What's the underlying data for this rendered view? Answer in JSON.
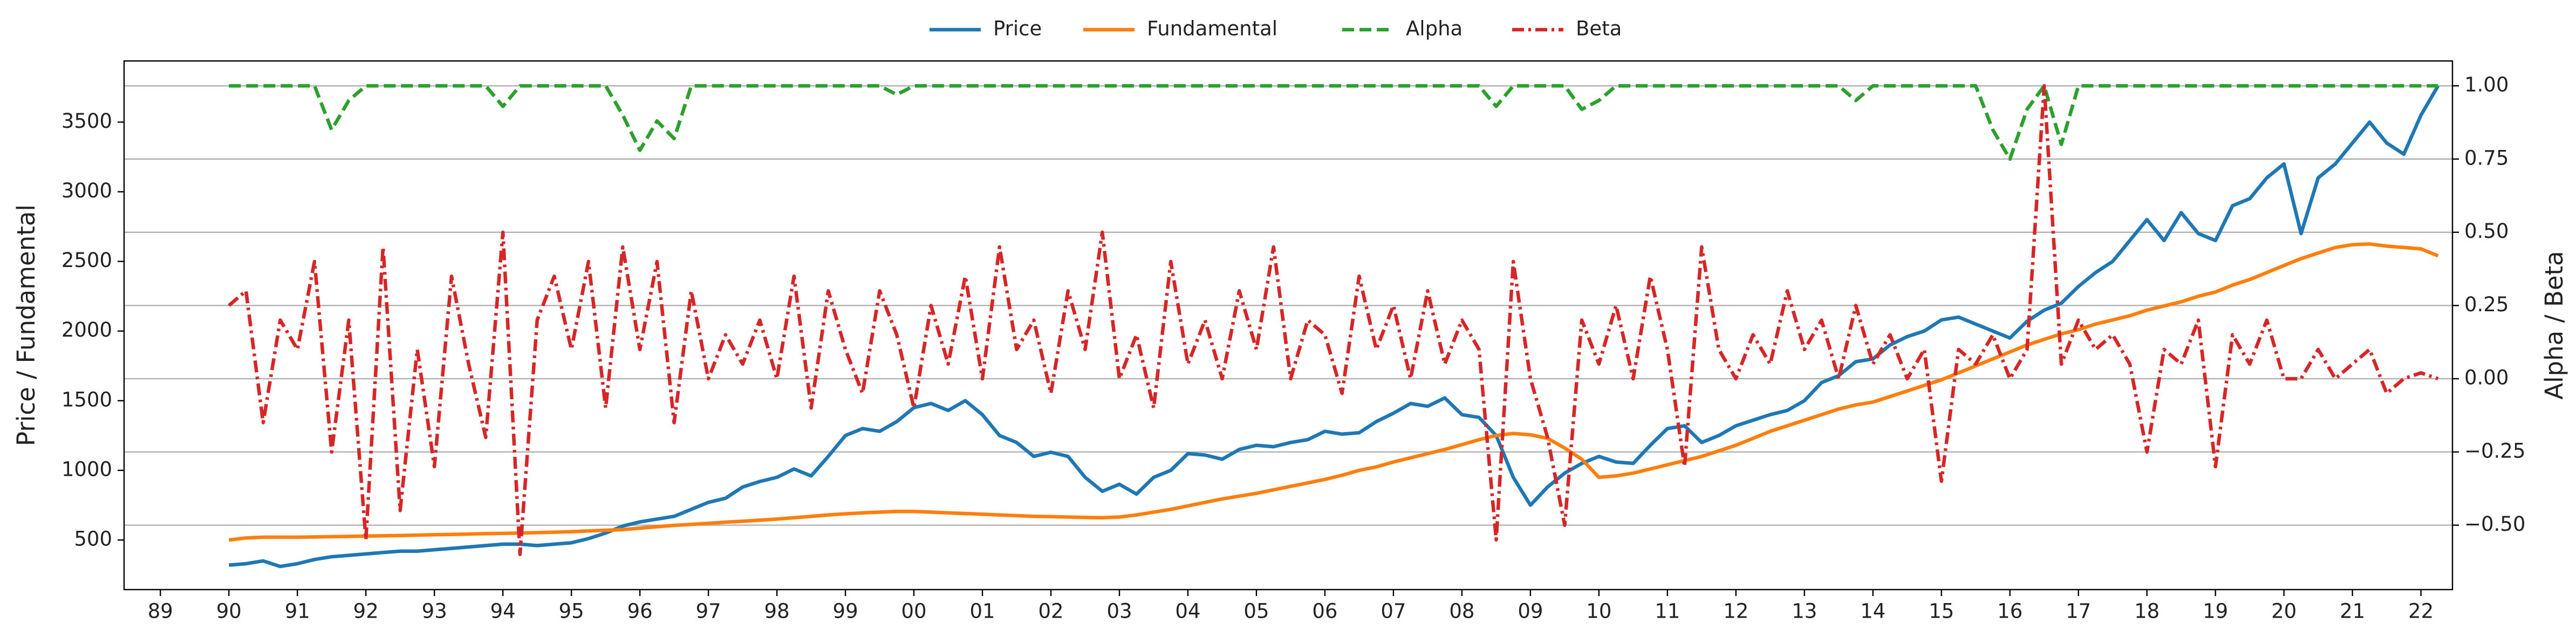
{
  "chart_data": {
    "type": "line",
    "ylabel": "Price / Fundamental",
    "y2label": "Alpha / Beta",
    "legend": "upper center",
    "grid": "y2",
    "xlim": [
      1988.47,
      2022.46
    ],
    "xticks": [
      {
        "value": 1989,
        "label": "89"
      },
      {
        "value": 1990,
        "label": "90"
      },
      {
        "value": 1991,
        "label": "91"
      },
      {
        "value": 1992,
        "label": "92"
      },
      {
        "value": 1993,
        "label": "93"
      },
      {
        "value": 1994,
        "label": "94"
      },
      {
        "value": 1995,
        "label": "95"
      },
      {
        "value": 1996,
        "label": "96"
      },
      {
        "value": 1997,
        "label": "97"
      },
      {
        "value": 1998,
        "label": "98"
      },
      {
        "value": 1999,
        "label": "99"
      },
      {
        "value": 2000,
        "label": "00"
      },
      {
        "value": 2001,
        "label": "01"
      },
      {
        "value": 2002,
        "label": "02"
      },
      {
        "value": 2003,
        "label": "03"
      },
      {
        "value": 2004,
        "label": "04"
      },
      {
        "value": 2005,
        "label": "05"
      },
      {
        "value": 2006,
        "label": "06"
      },
      {
        "value": 2007,
        "label": "07"
      },
      {
        "value": 2008,
        "label": "08"
      },
      {
        "value": 2009,
        "label": "09"
      },
      {
        "value": 2010,
        "label": "10"
      },
      {
        "value": 2011,
        "label": "11"
      },
      {
        "value": 2012,
        "label": "12"
      },
      {
        "value": 2013,
        "label": "13"
      },
      {
        "value": 2014,
        "label": "14"
      },
      {
        "value": 2015,
        "label": "15"
      },
      {
        "value": 2016,
        "label": "16"
      },
      {
        "value": 2017,
        "label": "17"
      },
      {
        "value": 2018,
        "label": "18"
      },
      {
        "value": 2019,
        "label": "19"
      },
      {
        "value": 2020,
        "label": "20"
      },
      {
        "value": 2021,
        "label": "21"
      },
      {
        "value": 2022,
        "label": "22"
      }
    ],
    "ylim": [
      144,
      3939
    ],
    "yticks": [
      500,
      1000,
      1500,
      2000,
      2500,
      3000,
      3500
    ],
    "y2lim": [
      -0.72,
      1.085
    ],
    "y2ticks": [
      {
        "value": -0.5,
        "label": "−0.50"
      },
      {
        "value": -0.25,
        "label": "−0.25"
      },
      {
        "value": 0,
        "label": "0.00"
      },
      {
        "value": 0.25,
        "label": "0.25"
      },
      {
        "value": 0.5,
        "label": "0.50"
      },
      {
        "value": 0.75,
        "label": "0.75"
      },
      {
        "value": 1,
        "label": "1.00"
      }
    ],
    "x": [
      1990,
      1990.25,
      1990.5,
      1990.75,
      1991,
      1991.25,
      1991.5,
      1991.75,
      1992,
      1992.25,
      1992.5,
      1992.75,
      1993,
      1993.25,
      1993.5,
      1993.75,
      1994,
      1994.25,
      1994.5,
      1994.75,
      1995,
      1995.25,
      1995.5,
      1995.75,
      1996,
      1996.25,
      1996.5,
      1996.75,
      1997,
      1997.25,
      1997.5,
      1997.75,
      1998,
      1998.25,
      1998.5,
      1998.75,
      1999,
      1999.25,
      1999.5,
      1999.75,
      2000,
      2000.25,
      2000.5,
      2000.75,
      2001,
      2001.25,
      2001.5,
      2001.75,
      2002,
      2002.25,
      2002.5,
      2002.75,
      2003,
      2003.25,
      2003.5,
      2003.75,
      2004,
      2004.25,
      2004.5,
      2004.75,
      2005,
      2005.25,
      2005.5,
      2005.75,
      2006,
      2006.25,
      2006.5,
      2006.75,
      2007,
      2007.25,
      2007.5,
      2007.75,
      2008,
      2008.25,
      2008.5,
      2008.75,
      2009,
      2009.25,
      2009.5,
      2009.75,
      2010,
      2010.25,
      2010.5,
      2010.75,
      2011,
      2011.25,
      2011.5,
      2011.75,
      2012,
      2012.25,
      2012.5,
      2012.75,
      2013,
      2013.25,
      2013.5,
      2013.75,
      2014,
      2014.25,
      2014.5,
      2014.75,
      2015,
      2015.25,
      2015.5,
      2015.75,
      2016,
      2016.25,
      2016.5,
      2016.75,
      2017,
      2017.25,
      2017.5,
      2017.75,
      2018,
      2018.25,
      2018.5,
      2018.75,
      2019,
      2019.25,
      2019.5,
      2019.75,
      2020,
      2020.25,
      2020.5,
      2020.75,
      2021,
      2021.25,
      2021.5,
      2021.75,
      2022,
      2022.25
    ],
    "series": [
      {
        "name": "Price",
        "color": "#1f77b4",
        "style": "solid",
        "values": [
          320,
          330,
          350,
          310,
          330,
          360,
          380,
          390,
          400,
          410,
          420,
          420,
          430,
          440,
          450,
          460,
          470,
          470,
          460,
          470,
          480,
          510,
          550,
          600,
          630,
          650,
          670,
          720,
          770,
          800,
          880,
          920,
          950,
          1010,
          960,
          1100,
          1250,
          1300,
          1280,
          1350,
          1450,
          1480,
          1430,
          1500,
          1400,
          1250,
          1200,
          1100,
          1130,
          1100,
          950,
          850,
          900,
          830,
          950,
          1000,
          1120,
          1110,
          1080,
          1150,
          1180,
          1170,
          1200,
          1220,
          1280,
          1260,
          1270,
          1350,
          1410,
          1480,
          1460,
          1520,
          1400,
          1380,
          1250,
          950,
          750,
          880,
          980,
          1050,
          1100,
          1060,
          1050,
          1180,
          1300,
          1320,
          1200,
          1250,
          1320,
          1360,
          1400,
          1430,
          1500,
          1630,
          1680,
          1780,
          1800,
          1900,
          1960,
          2000,
          2080,
          2100,
          2050,
          2000,
          1950,
          2070,
          2150,
          2200,
          2320,
          2420,
          2500,
          2650,
          2800,
          2650,
          2850,
          2700,
          2650,
          2900,
          2950,
          3100,
          3200,
          2700,
          3100,
          3200,
          3350,
          3500,
          3350,
          3270,
          3550,
          3760
        ]
      },
      {
        "name": "Fundamental",
        "color": "#ff7f0e",
        "style": "solid",
        "values": [
          500,
          515,
          520,
          520,
          520,
          522,
          524,
          526,
          528,
          530,
          532,
          535,
          538,
          540,
          543,
          546,
          548,
          550,
          553,
          556,
          560,
          565,
          570,
          575,
          585,
          595,
          605,
          612,
          620,
          628,
          635,
          642,
          650,
          660,
          670,
          680,
          688,
          695,
          700,
          705,
          705,
          700,
          695,
          690,
          685,
          680,
          675,
          670,
          668,
          665,
          662,
          660,
          665,
          680,
          700,
          720,
          745,
          770,
          795,
          815,
          835,
          860,
          885,
          910,
          935,
          965,
          1000,
          1025,
          1060,
          1090,
          1120,
          1150,
          1185,
          1220,
          1250,
          1265,
          1255,
          1230,
          1160,
          1080,
          950,
          960,
          980,
          1010,
          1040,
          1070,
          1100,
          1140,
          1180,
          1230,
          1280,
          1320,
          1360,
          1400,
          1440,
          1470,
          1490,
          1530,
          1570,
          1610,
          1650,
          1700,
          1750,
          1800,
          1850,
          1900,
          1940,
          1980,
          2010,
          2050,
          2080,
          2110,
          2150,
          2180,
          2210,
          2250,
          2280,
          2330,
          2370,
          2420,
          2470,
          2520,
          2560,
          2600,
          2620,
          2625,
          2610,
          2600,
          2590,
          2540
        ]
      },
      {
        "name": "Alpha",
        "color": "#2ca02c",
        "style": "dashed",
        "axis": "y2",
        "values": [
          1,
          1,
          1,
          1,
          1,
          1,
          0.85,
          0.95,
          1,
          1,
          1,
          1,
          1,
          1,
          1,
          1,
          0.93,
          1,
          1,
          1,
          1,
          1,
          1,
          0.9,
          0.78,
          0.88,
          0.82,
          1,
          1,
          1,
          1,
          1,
          1,
          1,
          1,
          1,
          1,
          1,
          1,
          0.97,
          1,
          1,
          1,
          1,
          1,
          1,
          1,
          1,
          1,
          1,
          1,
          1,
          1,
          1,
          1,
          1,
          1,
          1,
          1,
          1,
          1,
          1,
          1,
          1,
          1,
          1,
          1,
          1,
          1,
          1,
          1,
          1,
          1,
          1,
          0.93,
          1,
          1,
          1,
          1,
          0.92,
          0.95,
          1,
          1,
          1,
          1,
          1,
          1,
          1,
          1,
          1,
          1,
          1,
          1,
          1,
          1,
          0.95,
          1,
          1,
          1,
          1,
          1,
          1,
          1,
          0.85,
          0.75,
          0.92,
          1,
          0.8,
          1,
          1,
          1,
          1,
          1,
          1,
          1,
          1,
          1,
          1,
          1,
          1,
          1,
          1,
          1,
          1,
          1,
          1,
          1,
          1,
          1,
          1
        ]
      },
      {
        "name": "Beta",
        "color": "#d62728",
        "style": "dashdot",
        "axis": "y2",
        "values": [
          0.25,
          0.3,
          -0.15,
          0.2,
          0.1,
          0.4,
          -0.25,
          0.2,
          -0.55,
          0.45,
          -0.45,
          0.1,
          -0.3,
          0.35,
          0.05,
          -0.2,
          0.5,
          -0.6,
          0.2,
          0.35,
          0.1,
          0.4,
          -0.1,
          0.45,
          0.1,
          0.4,
          -0.15,
          0.3,
          0,
          0.15,
          0.05,
          0.2,
          0,
          0.35,
          -0.1,
          0.3,
          0.1,
          -0.05,
          0.3,
          0.15,
          -0.1,
          0.25,
          0.05,
          0.35,
          0,
          0.45,
          0.1,
          0.2,
          -0.05,
          0.3,
          0.1,
          0.5,
          0,
          0.15,
          -0.1,
          0.4,
          0.05,
          0.2,
          0,
          0.3,
          0.1,
          0.45,
          0,
          0.2,
          0.15,
          -0.05,
          0.35,
          0.1,
          0.25,
          0,
          0.3,
          0.05,
          0.2,
          0.1,
          -0.55,
          0.4,
          0,
          -0.2,
          -0.5,
          0.2,
          0.05,
          0.25,
          0,
          0.35,
          0.1,
          -0.3,
          0.45,
          0.1,
          0,
          0.15,
          0.05,
          0.3,
          0.1,
          0.2,
          0,
          0.25,
          0.05,
          0.15,
          0,
          0.1,
          -0.35,
          0.1,
          0.05,
          0.15,
          0,
          0.1,
          1,
          0.05,
          0.2,
          0.1,
          0.15,
          0.05,
          -0.25,
          0.1,
          0.05,
          0.2,
          -0.3,
          0.15,
          0.05,
          0.2,
          0,
          0,
          0.1,
          0,
          0.05,
          0.1,
          -0.05,
          0,
          0.02,
          0
        ]
      }
    ]
  }
}
